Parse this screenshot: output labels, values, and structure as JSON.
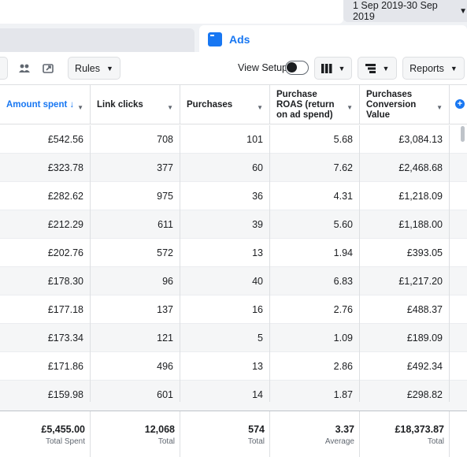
{
  "header": {
    "date_range": "1 Sep 2019-30 Sep 2019"
  },
  "tabs": {
    "ads_label": "Ads"
  },
  "toolbar": {
    "rules_label": "Rules",
    "view_setup_label": "View Setup",
    "reports_label": "Reports"
  },
  "table": {
    "columns": [
      "Amount spent ↓",
      "Link clicks",
      "Purchases",
      "Purchase ROAS (return on ad spend)",
      "Purchases Conversion Value"
    ],
    "rows": [
      [
        "£542.56",
        "708",
        "101",
        "5.68",
        "£3,084.13"
      ],
      [
        "£323.78",
        "377",
        "60",
        "7.62",
        "£2,468.68"
      ],
      [
        "£282.62",
        "975",
        "36",
        "4.31",
        "£1,218.09"
      ],
      [
        "£212.29",
        "611",
        "39",
        "5.60",
        "£1,188.00"
      ],
      [
        "£202.76",
        "572",
        "13",
        "1.94",
        "£393.05"
      ],
      [
        "£178.30",
        "96",
        "40",
        "6.83",
        "£1,217.20"
      ],
      [
        "£177.18",
        "137",
        "16",
        "2.76",
        "£488.37"
      ],
      [
        "£173.34",
        "121",
        "5",
        "1.09",
        "£189.09"
      ],
      [
        "£171.86",
        "496",
        "13",
        "2.86",
        "£492.34"
      ],
      [
        "£159.98",
        "601",
        "14",
        "1.87",
        "£298.82"
      ]
    ],
    "totals": [
      {
        "value": "£5,455.00",
        "label": "Total Spent"
      },
      {
        "value": "12,068",
        "label": "Total"
      },
      {
        "value": "574",
        "label": "Total"
      },
      {
        "value": "3.37",
        "label": "Average"
      },
      {
        "value": "£18,373.87",
        "label": "Total"
      }
    ]
  },
  "colors": {
    "accent": "#1877f2",
    "background": "#f0f2f5",
    "row_alt": "#f5f6f7"
  }
}
